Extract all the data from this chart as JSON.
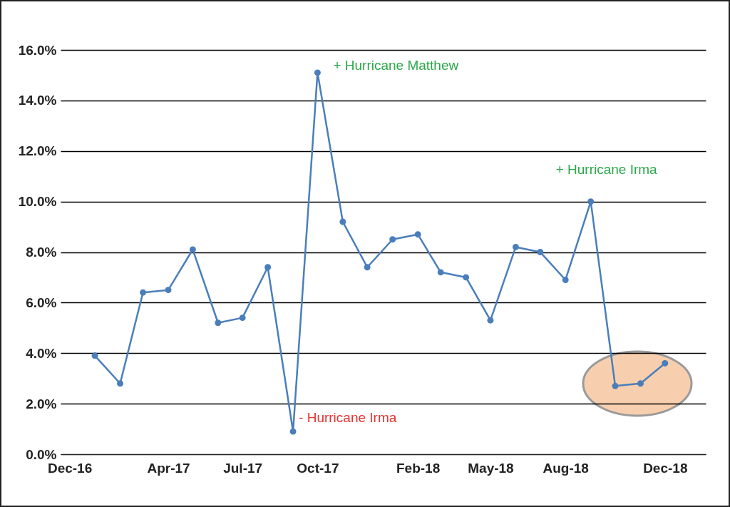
{
  "chart_data": {
    "type": "line",
    "x": [
      "2017-01",
      "2017-02",
      "2017-03",
      "2017-04",
      "2017-05",
      "2017-06",
      "2017-07",
      "2017-08",
      "2017-09",
      "2017-10",
      "2017-11",
      "2017-12",
      "2018-01",
      "2018-02",
      "2018-03",
      "2018-04",
      "2018-05",
      "2018-06",
      "2018-07",
      "2018-08",
      "2018-09",
      "2018-10",
      "2018-11",
      "2018-12"
    ],
    "series": [
      {
        "color": "#4a7ebb",
        "values": [
          3.9,
          2.8,
          6.4,
          6.5,
          8.1,
          5.2,
          5.4,
          7.4,
          0.9,
          15.1,
          9.2,
          7.4,
          8.5,
          8.7,
          7.2,
          7.0,
          5.3,
          8.2,
          8.0,
          6.9,
          10.0,
          2.7,
          2.8,
          3.6
        ]
      }
    ],
    "ylim": [
      0,
      16
    ],
    "yticks": [
      {
        "value": 0,
        "label": "0.0%"
      },
      {
        "value": 2,
        "label": "2.0%"
      },
      {
        "value": 4,
        "label": "4.0%"
      },
      {
        "value": 6,
        "label": "6.0%"
      },
      {
        "value": 8,
        "label": "8.0%"
      },
      {
        "value": 10,
        "label": "10.0%"
      },
      {
        "value": 12,
        "label": "12.0%"
      },
      {
        "value": 14,
        "label": "14.0%"
      },
      {
        "value": 16,
        "label": "16.0%"
      }
    ],
    "xlim": [
      "2016-11-20",
      "2019-01-20"
    ],
    "xticks": [
      {
        "value": "2016-12",
        "label": "Dec-16"
      },
      {
        "value": "2017-04",
        "label": "Apr-17"
      },
      {
        "value": "2017-07",
        "label": "Jul-17"
      },
      {
        "value": "2017-10",
        "label": "Oct-17"
      },
      {
        "value": "2018-02",
        "label": "Feb-18"
      },
      {
        "value": "2018-05",
        "label": "May-18"
      },
      {
        "value": "2018-08",
        "label": "Aug-18"
      },
      {
        "value": "2018-12",
        "label": "Dec-18"
      }
    ],
    "grid": "y",
    "marker": "circle",
    "line_style": "solid",
    "annotations": [
      {
        "text": "+ Hurricane Matthew",
        "x": "2017-10",
        "y": 15.1
      },
      {
        "text": "+ Hurricane Irma",
        "x": "2018-09",
        "y": 10.0
      },
      {
        "text": "- Hurricane Irma",
        "x": "2017-09",
        "y": 0.9
      }
    ]
  }
}
